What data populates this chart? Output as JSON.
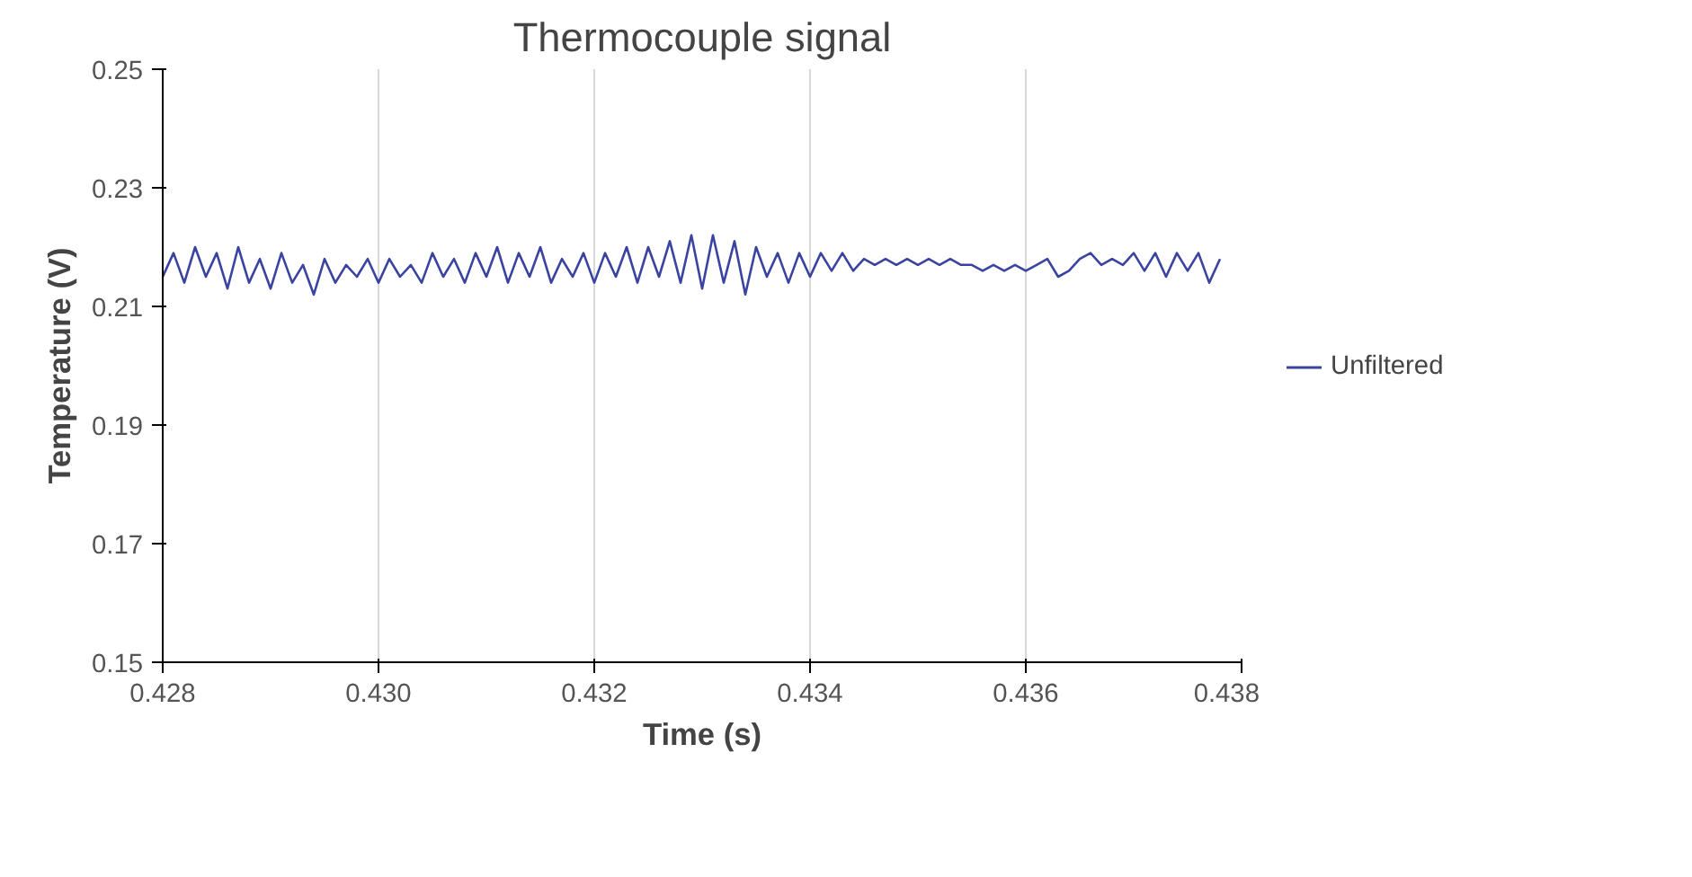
{
  "chart_data": {
    "type": "line",
    "title": "Thermocouple signal",
    "xlabel": "Time (s)",
    "ylabel": "Temperature (V)",
    "x": [
      0.428,
      0.4281,
      0.4282,
      0.4283,
      0.4284,
      0.4285,
      0.4286,
      0.4287,
      0.4288,
      0.4289,
      0.429,
      0.4291,
      0.4292,
      0.4293,
      0.4294,
      0.4295,
      0.4296,
      0.4297,
      0.4298,
      0.4299,
      0.43,
      0.4301,
      0.4302,
      0.4303,
      0.4304,
      0.4305,
      0.4306,
      0.4307,
      0.4308,
      0.4309,
      0.431,
      0.4311,
      0.4312,
      0.4313,
      0.4314,
      0.4315,
      0.4316,
      0.4317,
      0.4318,
      0.4319,
      0.432,
      0.4321,
      0.4322,
      0.4323,
      0.4324,
      0.4325,
      0.4326,
      0.4327,
      0.4328,
      0.4329,
      0.433,
      0.4331,
      0.4332,
      0.4333,
      0.4334,
      0.4335,
      0.4336,
      0.4337,
      0.4338,
      0.4339,
      0.434,
      0.4341,
      0.4342,
      0.4343,
      0.4344,
      0.4345,
      0.4346,
      0.4347,
      0.4348,
      0.4349,
      0.435,
      0.4351,
      0.4352,
      0.4353,
      0.4354,
      0.4355,
      0.4356,
      0.4357,
      0.4358,
      0.4359,
      0.436,
      0.4361,
      0.4362,
      0.4363,
      0.4364,
      0.4365,
      0.4366,
      0.4367,
      0.4368,
      0.4369,
      0.437,
      0.4371,
      0.4372,
      0.4373,
      0.4374,
      0.4375,
      0.4376,
      0.4377,
      0.4378
    ],
    "series": [
      {
        "name": "Unfiltered",
        "color": "#3a44a0",
        "values": [
          0.215,
          0.219,
          0.214,
          0.22,
          0.215,
          0.219,
          0.213,
          0.22,
          0.214,
          0.218,
          0.213,
          0.219,
          0.214,
          0.217,
          0.212,
          0.218,
          0.214,
          0.217,
          0.215,
          0.218,
          0.214,
          0.218,
          0.215,
          0.217,
          0.214,
          0.219,
          0.215,
          0.218,
          0.214,
          0.219,
          0.215,
          0.22,
          0.214,
          0.219,
          0.215,
          0.22,
          0.214,
          0.218,
          0.215,
          0.219,
          0.214,
          0.219,
          0.215,
          0.22,
          0.214,
          0.22,
          0.215,
          0.221,
          0.214,
          0.222,
          0.213,
          0.222,
          0.214,
          0.221,
          0.212,
          0.22,
          0.215,
          0.219,
          0.214,
          0.219,
          0.215,
          0.219,
          0.216,
          0.219,
          0.216,
          0.218,
          0.217,
          0.218,
          0.217,
          0.218,
          0.217,
          0.218,
          0.217,
          0.218,
          0.217,
          0.217,
          0.216,
          0.217,
          0.216,
          0.217,
          0.216,
          0.217,
          0.218,
          0.215,
          0.216,
          0.218,
          0.219,
          0.217,
          0.218,
          0.217,
          0.219,
          0.216,
          0.219,
          0.215,
          0.219,
          0.216,
          0.219,
          0.214,
          0.218
        ]
      }
    ],
    "xlim": [
      0.428,
      0.438
    ],
    "xticks": [
      0.428,
      {
        "value": 0.43,
        "label": "0.430"
      },
      0.432,
      0.434,
      0.436,
      0.438
    ],
    "ylim": [
      0.15,
      0.25
    ],
    "yticks": [
      0.15,
      0.17,
      0.19,
      0.21,
      0.23,
      0.25
    ],
    "grid": "x",
    "legend": "right",
    "marker": "none",
    "line_style": "solid"
  }
}
